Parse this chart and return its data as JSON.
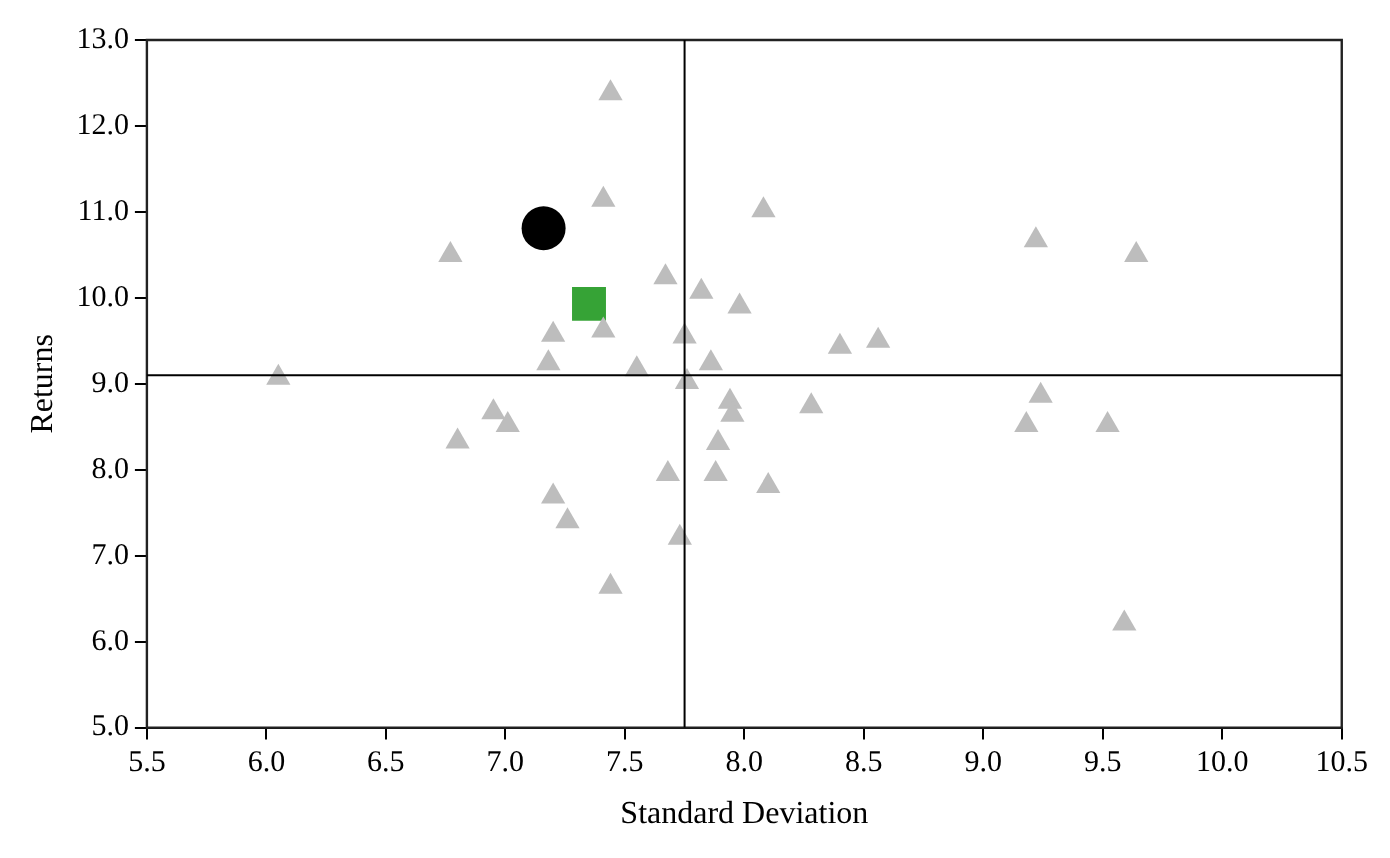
{
  "chart_data": {
    "type": "scatter",
    "xlabel": "Standard Deviation",
    "ylabel": "Returns",
    "xlim": [
      5.5,
      10.5
    ],
    "ylim": [
      5,
      13
    ],
    "xticks": [
      5.5,
      {
        "value": 6,
        "label": "6.0"
      },
      6.5,
      {
        "value": 7,
        "label": "7.0"
      },
      7.5,
      {
        "value": 8,
        "label": "8.0"
      },
      8.5,
      {
        "value": 9,
        "label": "9.0"
      },
      9.5,
      {
        "value": 10,
        "label": "10.0"
      },
      10.5
    ],
    "yticks": [
      {
        "value": 5,
        "label": "5.0"
      },
      {
        "value": 6,
        "label": "6.0"
      },
      {
        "value": 7,
        "label": "7.0"
      },
      {
        "value": 8,
        "label": "8.0"
      },
      {
        "value": 9,
        "label": "9.0"
      },
      {
        "value": 10,
        "label": "10.0"
      },
      {
        "value": 11,
        "label": "11.0"
      },
      {
        "value": 12,
        "label": "12.0"
      },
      {
        "value": 13,
        "label": "13.0"
      }
    ],
    "grid": false,
    "legend": false,
    "ref_lines": [
      {
        "axis": "x",
        "value": 7.75,
        "color": "#000000"
      },
      {
        "axis": "y",
        "value": 9.1,
        "color": "#000000"
      }
    ],
    "series": [
      {
        "color": "#bdbdbd",
        "marker": "triangle",
        "x": [
          6.05,
          6.77,
          6.8,
          6.95,
          7.01,
          7.2,
          7.18,
          7.2,
          7.26,
          7.41,
          7.44,
          7.41,
          7.44,
          7.55,
          7.67,
          7.75,
          7.82,
          7.98,
          7.76,
          7.68,
          7.73,
          7.86,
          7.94,
          7.95,
          7.89,
          7.88,
          8.08,
          8.4,
          8.56,
          8.28,
          8.1,
          9.22,
          9.64,
          9.24,
          9.18,
          9.52,
          9.59
        ],
        "values": [
          9.07,
          10.5,
          8.33,
          8.67,
          8.52,
          9.57,
          9.24,
          7.69,
          7.4,
          11.14,
          12.38,
          9.62,
          6.64,
          9.17,
          10.24,
          9.55,
          10.07,
          9.9,
          9.02,
          7.95,
          7.21,
          9.24,
          8.79,
          8.64,
          8.31,
          7.95,
          11.02,
          9.43,
          9.5,
          8.74,
          7.81,
          10.67,
          10.5,
          8.86,
          8.52,
          8.52,
          6.21
        ]
      },
      {
        "color": "#000000",
        "marker": "circle",
        "x": [
          7.16
        ],
        "values": [
          10.81
        ]
      },
      {
        "color": "#36a336",
        "marker": "square",
        "x": [
          7.35
        ],
        "values": [
          9.93
        ]
      }
    ]
  }
}
